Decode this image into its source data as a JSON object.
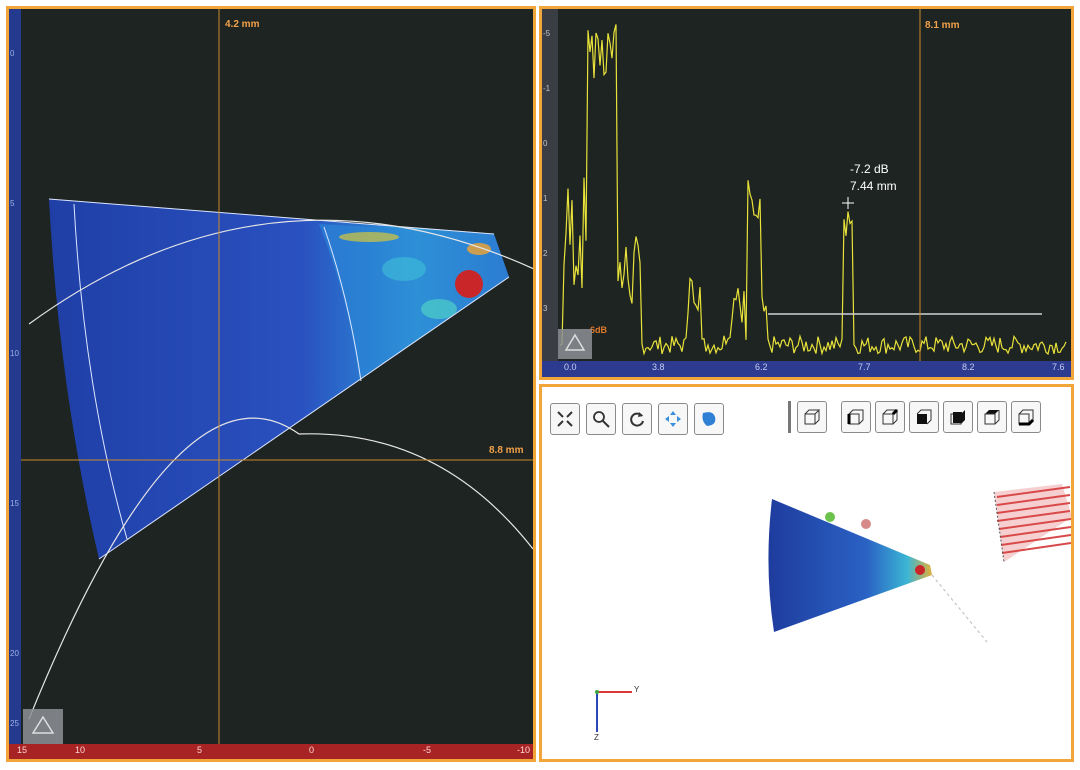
{
  "left_view": {
    "cursor_x_label": "4.2 mm",
    "cursor_y_label": "8.8 mm",
    "v_ticks": [
      "0",
      "5",
      "10",
      "15",
      "20",
      "25"
    ],
    "h_ticks": [
      "15",
      "10",
      "5",
      "0",
      "-5",
      "-10"
    ]
  },
  "ascan": {
    "cursor_label": "8.1 mm",
    "peak_db": "-7.2 dB",
    "peak_depth": "7.44 mm",
    "gate_label": "6dB",
    "x_ticks": [
      "0.0",
      "3.8",
      "6.2",
      "7.7",
      "8.2",
      "7.6"
    ],
    "y_ticks": [
      "-5",
      "-1",
      "0",
      "1",
      "2",
      "3"
    ]
  },
  "view3d": {
    "axis_y_label": "Y",
    "axis_z_label": "Z",
    "tools": [
      "fit-icon",
      "zoom-icon",
      "rotate-icon",
      "pan-icon",
      "color-icon"
    ],
    "view_buttons": [
      "iso-view-icon",
      "front-view-icon",
      "back-view-icon",
      "left-view-icon",
      "right-view-icon",
      "top-view-icon",
      "bottom-view-icon"
    ]
  },
  "colors": {
    "border": "#f2a63a",
    "panel_bg": "#1d2421",
    "signal": "#e8e23a",
    "cursor": "#c98a2a"
  }
}
